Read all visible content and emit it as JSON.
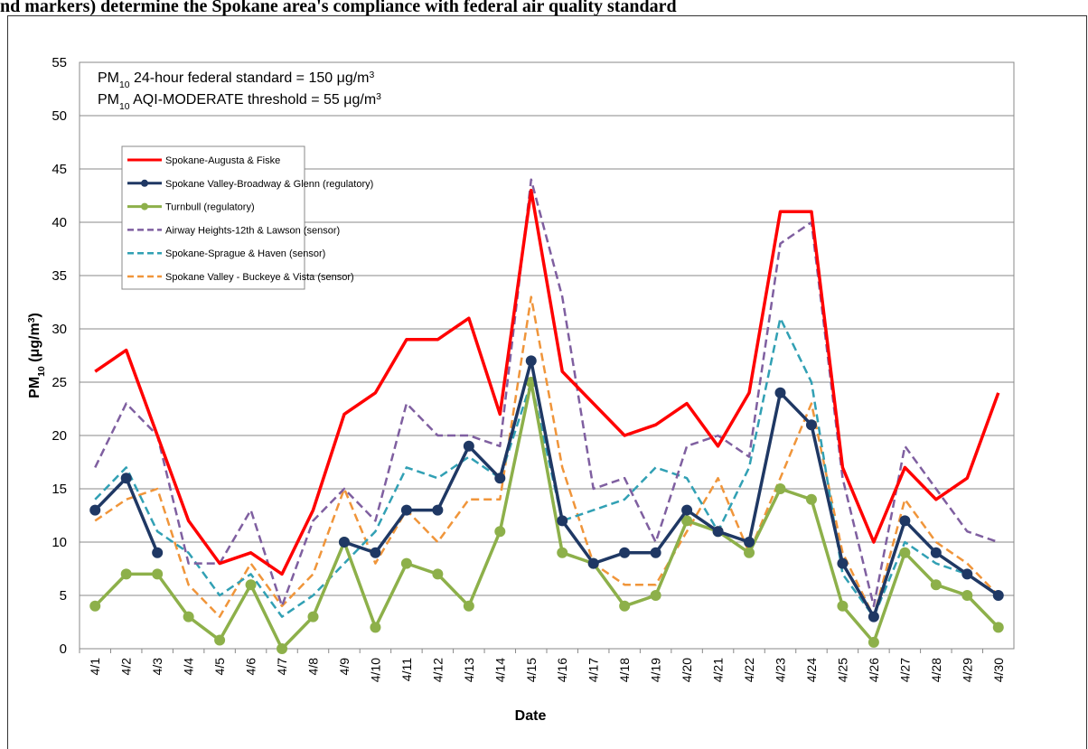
{
  "chart_data": {
    "type": "line",
    "title": "nd markers) determine the Spokane area's compliance with federal air quality standard",
    "xlabel": "Date",
    "ylabel": [
      {
        "text": "PM"
      },
      {
        "text": "10",
        "shift": "sub"
      },
      {
        "text": " (μg/m"
      },
      {
        "text": "3",
        "shift": "sup"
      },
      {
        "text": ")"
      }
    ],
    "annotations": [
      [
        {
          "text": "PM"
        },
        {
          "text": "10",
          "shift": "sub"
        },
        {
          "text": " 24-hour federal standard = 150 "
        },
        {
          "text": "μg/m"
        },
        {
          "text": "3",
          "shift": "sup"
        }
      ],
      [
        {
          "text": "PM"
        },
        {
          "text": "10",
          "shift": "sub"
        },
        {
          "text": " AQI-MODERATE threshold = 55 "
        },
        {
          "text": "μg/m"
        },
        {
          "text": "3",
          "shift": "sup"
        }
      ]
    ],
    "categories": [
      "4/1",
      "4/2",
      "4/3",
      "4/4",
      "4/5",
      "4/6",
      "4/7",
      "4/8",
      "4/9",
      "4/10",
      "4/11",
      "4/12",
      "4/13",
      "4/14",
      "4/15",
      "4/16",
      "4/17",
      "4/18",
      "4/19",
      "4/20",
      "4/21",
      "4/22",
      "4/23",
      "4/24",
      "4/25",
      "4/26",
      "4/27",
      "4/28",
      "4/29",
      "4/30"
    ],
    "ylim": [
      0,
      55
    ],
    "yticks": [
      0,
      5,
      10,
      15,
      20,
      25,
      30,
      35,
      40,
      45,
      50,
      55
    ],
    "grid": true,
    "legend": "upper left",
    "series": [
      {
        "name": "Spokane-Augusta & Fiske",
        "color": "#ff0000",
        "line_style": "solid",
        "markers": false,
        "values": [
          26,
          28,
          20,
          12,
          8,
          9,
          7,
          13,
          22,
          24,
          29,
          29,
          31,
          22,
          43,
          26,
          23,
          20,
          21,
          23,
          19,
          24,
          41,
          41,
          17,
          10,
          17,
          14,
          16,
          24
        ]
      },
      {
        "name": "Spokane Valley-Broadway & Glenn (regulatory)",
        "color": "#1f3864",
        "line_style": "solid",
        "markers": true,
        "values": [
          13,
          16,
          9,
          null,
          null,
          null,
          null,
          null,
          10,
          9,
          13,
          13,
          19,
          16,
          27,
          12,
          8,
          9,
          9,
          13,
          11,
          10,
          24,
          21,
          8,
          3,
          12,
          9,
          7,
          5
        ]
      },
      {
        "name": "Turnbull (regulatory)",
        "color": "#8db04a",
        "line_style": "solid",
        "markers": true,
        "values": [
          4,
          7,
          7,
          3,
          0.8,
          6,
          0,
          3,
          10,
          2,
          8,
          7,
          4,
          11,
          25,
          9,
          8,
          4,
          5,
          12,
          11,
          9,
          15,
          14,
          4,
          0.6,
          9,
          6,
          5,
          2
        ]
      },
      {
        "name": "Airway Heights-12th & Lawson (sensor)",
        "color": "#7f5fa0",
        "line_style": "dashed",
        "markers": false,
        "values": [
          17,
          23,
          20,
          8,
          8,
          13,
          4,
          12,
          15,
          12,
          23,
          20,
          20,
          19,
          44,
          33,
          15,
          16,
          10,
          19,
          20,
          18,
          38,
          40,
          16,
          4,
          19,
          15,
          11,
          10
        ]
      },
      {
        "name": "Spokane-Sprague & Haven (sensor)",
        "color": "#31a0b4",
        "line_style": "dashed",
        "markers": false,
        "values": [
          14,
          17,
          11,
          9,
          5,
          7,
          3,
          5,
          8,
          11,
          17,
          16,
          18,
          16,
          25,
          12,
          13,
          14,
          17,
          16,
          11,
          17,
          31,
          25,
          7,
          3,
          10,
          8,
          7,
          5
        ]
      },
      {
        "name": "Spokane Valley - Buckeye & Vista (sensor)",
        "color": "#f0953a",
        "line_style": "dashed",
        "markers": false,
        "values": [
          12,
          14,
          15,
          6,
          3,
          8,
          4,
          7,
          15,
          8,
          13,
          10,
          14,
          14,
          33,
          17,
          8,
          6,
          6,
          11,
          16,
          9,
          16,
          23,
          9,
          3,
          14,
          10,
          8,
          5
        ]
      }
    ]
  }
}
